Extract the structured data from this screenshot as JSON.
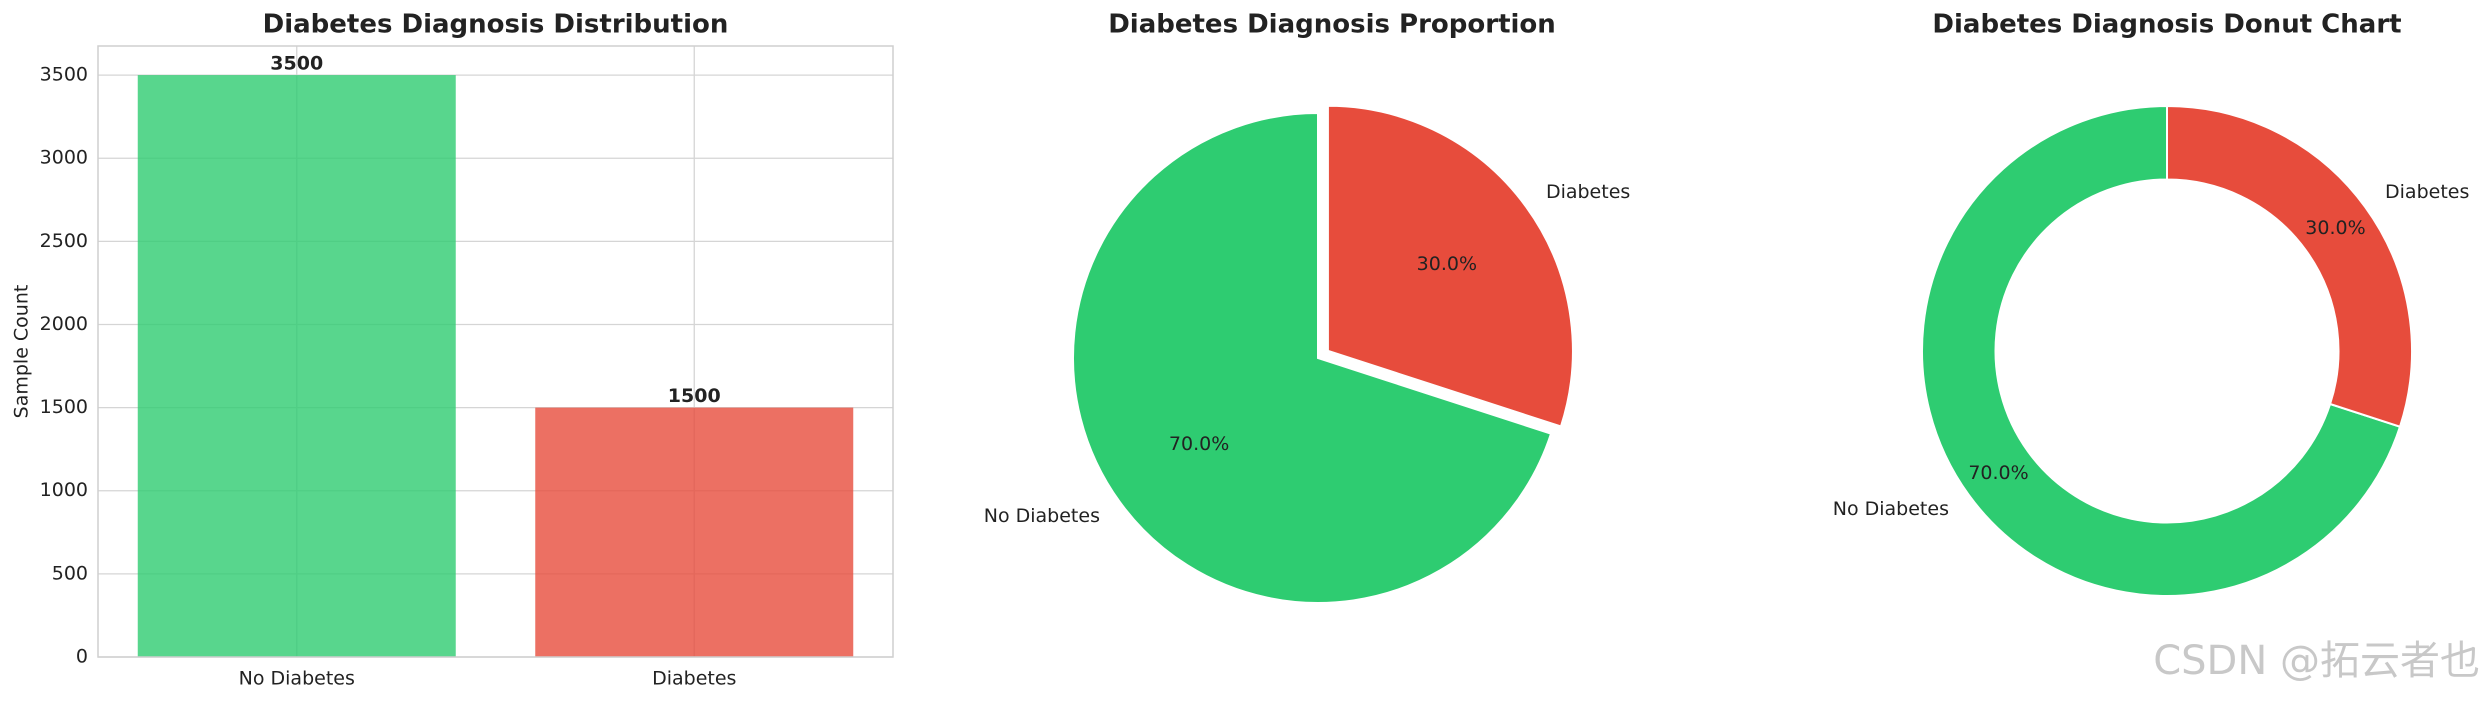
{
  "chart_data": [
    {
      "type": "bar",
      "title": "Diabetes Diagnosis Distribution",
      "ylabel": "Sample Count",
      "categories": [
        "No Diabetes",
        "Diabetes"
      ],
      "values": [
        3500,
        1500
      ],
      "colors": [
        "#2ecc71",
        "#e74c3c"
      ],
      "ylim": [
        0,
        3675
      ],
      "yticks": [
        0,
        500,
        1000,
        1500,
        2000,
        2500,
        3000,
        3500
      ],
      "grid": true
    },
    {
      "type": "pie",
      "title": "Diabetes Diagnosis Proportion",
      "categories": [
        "No Diabetes",
        "Diabetes"
      ],
      "values": [
        70,
        30
      ],
      "value_labels": [
        "70.0%",
        "30.0%"
      ],
      "colors": [
        "#2ecc71",
        "#e74c3c"
      ],
      "startangle": 90,
      "explode": [
        0,
        0.05
      ]
    },
    {
      "type": "donut",
      "title": "Diabetes Diagnosis Donut Chart",
      "categories": [
        "No Diabetes",
        "Diabetes"
      ],
      "values": [
        70,
        30
      ],
      "value_labels": [
        "70.0%",
        "30.0%"
      ],
      "colors": [
        "#2ecc71",
        "#e74c3c"
      ],
      "startangle": 90
    }
  ],
  "watermark": "CSDN @拓云者也"
}
